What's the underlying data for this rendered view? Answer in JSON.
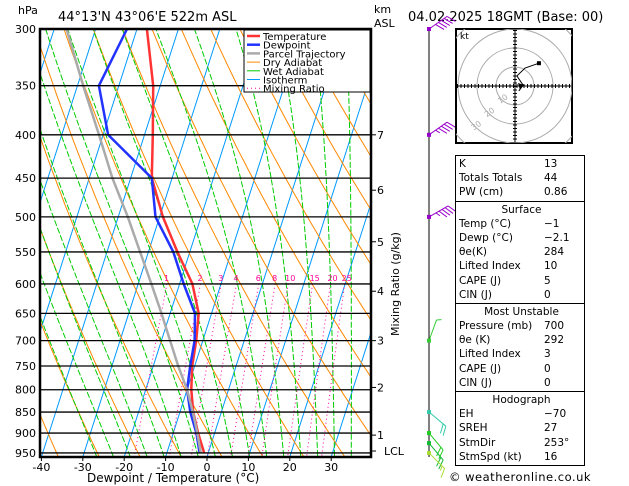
{
  "header": {
    "hpa_label": "hPa",
    "location": "44°13'N  43°06'E  522m  ASL",
    "km_label": "km",
    "asl_label": "ASL",
    "datetime": "04.02.2025  18GMT  (Base: 00)"
  },
  "legend": [
    "Temperature",
    "Dewpoint",
    "Parcel Trajectory",
    "Dry Adiabat",
    "Wet Adiabat",
    "Isotherm",
    "Mixing Ratio"
  ],
  "colors": {
    "temperature": "#ff3333",
    "dewpoint": "#2233ff",
    "parcel": "#aaaaaa",
    "dry_adiabat": "#ff8800",
    "wet_adiabat": "#00cc00",
    "isotherm": "#0099ff",
    "mixing_ratio": "#ff0099"
  },
  "chart_data": {
    "type": "line",
    "title": "44°13'N 43°06'E 522m ASL",
    "xlabel": "Dewpoint / Temperature (°C)",
    "ylabel": "hPa",
    "y2label": "Mixing Ratio (g/kg)",
    "xlim": [
      -40,
      40
    ],
    "ylim": [
      960,
      300
    ],
    "x_ticks": [
      -40,
      -30,
      -20,
      -10,
      0,
      10,
      20,
      30
    ],
    "pressure_ticks": [
      300,
      350,
      400,
      450,
      500,
      550,
      600,
      650,
      700,
      750,
      800,
      850,
      900,
      950
    ],
    "km_ticks": [
      {
        "label": "7",
        "p": 400
      },
      {
        "label": "6",
        "p": 465
      },
      {
        "label": "5",
        "p": 535
      },
      {
        "label": "4",
        "p": 612
      },
      {
        "label": "3",
        "p": 700
      },
      {
        "label": "2",
        "p": 795
      },
      {
        "label": "1",
        "p": 905
      },
      {
        "label": "LCL",
        "p": 945
      }
    ],
    "mixing_ratio_labels": [
      1,
      2,
      3,
      4,
      6,
      8,
      10,
      15,
      20,
      25
    ],
    "pressure": [
      300,
      350,
      400,
      450,
      500,
      550,
      600,
      650,
      700,
      750,
      800,
      850,
      900,
      950
    ],
    "series": [
      {
        "name": "Temperature",
        "values": [
          -47.6,
          -41.7,
          -38,
          -34.9,
          -29.2,
          -23,
          -16.9,
          -13.1,
          -11.6,
          -10.6,
          -9,
          -6.8,
          -4,
          -1
        ]
      },
      {
        "name": "Dewpoint",
        "values": [
          -52.4,
          -54.8,
          -48.8,
          -34.9,
          -31,
          -24,
          -19,
          -14,
          -12,
          -11.1,
          -10,
          -7.5,
          -4.4,
          -2.1
        ]
      },
      {
        "name": "Parcel Trajectory",
        "values": [
          -67,
          -58.6,
          -51,
          -44.4,
          -37.7,
          -32,
          -26.8,
          -22.1,
          -17.9,
          -14,
          -10,
          -6.9,
          -4.2,
          -1.8
        ]
      }
    ],
    "wind": [
      {
        "p": 300,
        "dir": 235,
        "spd": 50,
        "color": "#9900cc"
      },
      {
        "p": 400,
        "dir": 235,
        "spd": 45,
        "color": "#9900cc"
      },
      {
        "p": 500,
        "dir": 240,
        "spd": 45,
        "color": "#9900cc"
      },
      {
        "p": 700,
        "dir": 200,
        "spd": 5,
        "color": "#33cc33"
      },
      {
        "p": 850,
        "dir": 310,
        "spd": 20,
        "color": "#33ccaa"
      },
      {
        "p": 900,
        "dir": 320,
        "spd": 20,
        "color": "#22cc22"
      },
      {
        "p": 925,
        "dir": 320,
        "spd": 20,
        "color": "#11bb33"
      },
      {
        "p": 950,
        "dir": 315,
        "spd": 15,
        "color": "#aadd33"
      }
    ],
    "hodograph": {
      "unit": "kt",
      "ring_labels": [
        "10",
        "20",
        "30"
      ],
      "uv": [
        [
          2,
          -2.6
        ],
        [
          4.2,
          0.5
        ],
        [
          1,
          5.3
        ],
        [
          5.3,
          9.5
        ],
        [
          12.6,
          12
        ]
      ]
    }
  },
  "indices": {
    "rows": [
      {
        "k": "K",
        "v": "13"
      },
      {
        "k": "Totals Totals",
        "v": "44"
      },
      {
        "k": "PW (cm)",
        "v": "0.86"
      }
    ]
  },
  "surface": {
    "title": "Surface",
    "rows": [
      {
        "k": "Temp (°C)",
        "v": "−1"
      },
      {
        "k": "Dewp (°C)",
        "v": "−2.1"
      },
      {
        "k": "θe(K)",
        "v": "284"
      },
      {
        "k": "Lifted Index",
        "v": "10"
      },
      {
        "k": "CAPE (J)",
        "v": "5"
      },
      {
        "k": "CIN (J)",
        "v": "0"
      }
    ]
  },
  "most_unstable": {
    "title": "Most Unstable",
    "rows": [
      {
        "k": "Pressure (mb)",
        "v": "700"
      },
      {
        "k": "θe (K)",
        "v": "292"
      },
      {
        "k": "Lifted Index",
        "v": "3"
      },
      {
        "k": "CAPE (J)",
        "v": "0"
      },
      {
        "k": "CIN (J)",
        "v": "0"
      }
    ]
  },
  "hodograph_table": {
    "title": "Hodograph",
    "rows": [
      {
        "k": "EH",
        "v": "−70"
      },
      {
        "k": "SREH",
        "v": "27"
      },
      {
        "k": "StmDir",
        "v": "253°"
      },
      {
        "k": "StmSpd (kt)",
        "v": "16"
      }
    ]
  },
  "footer": "© weatheronline.co.uk"
}
